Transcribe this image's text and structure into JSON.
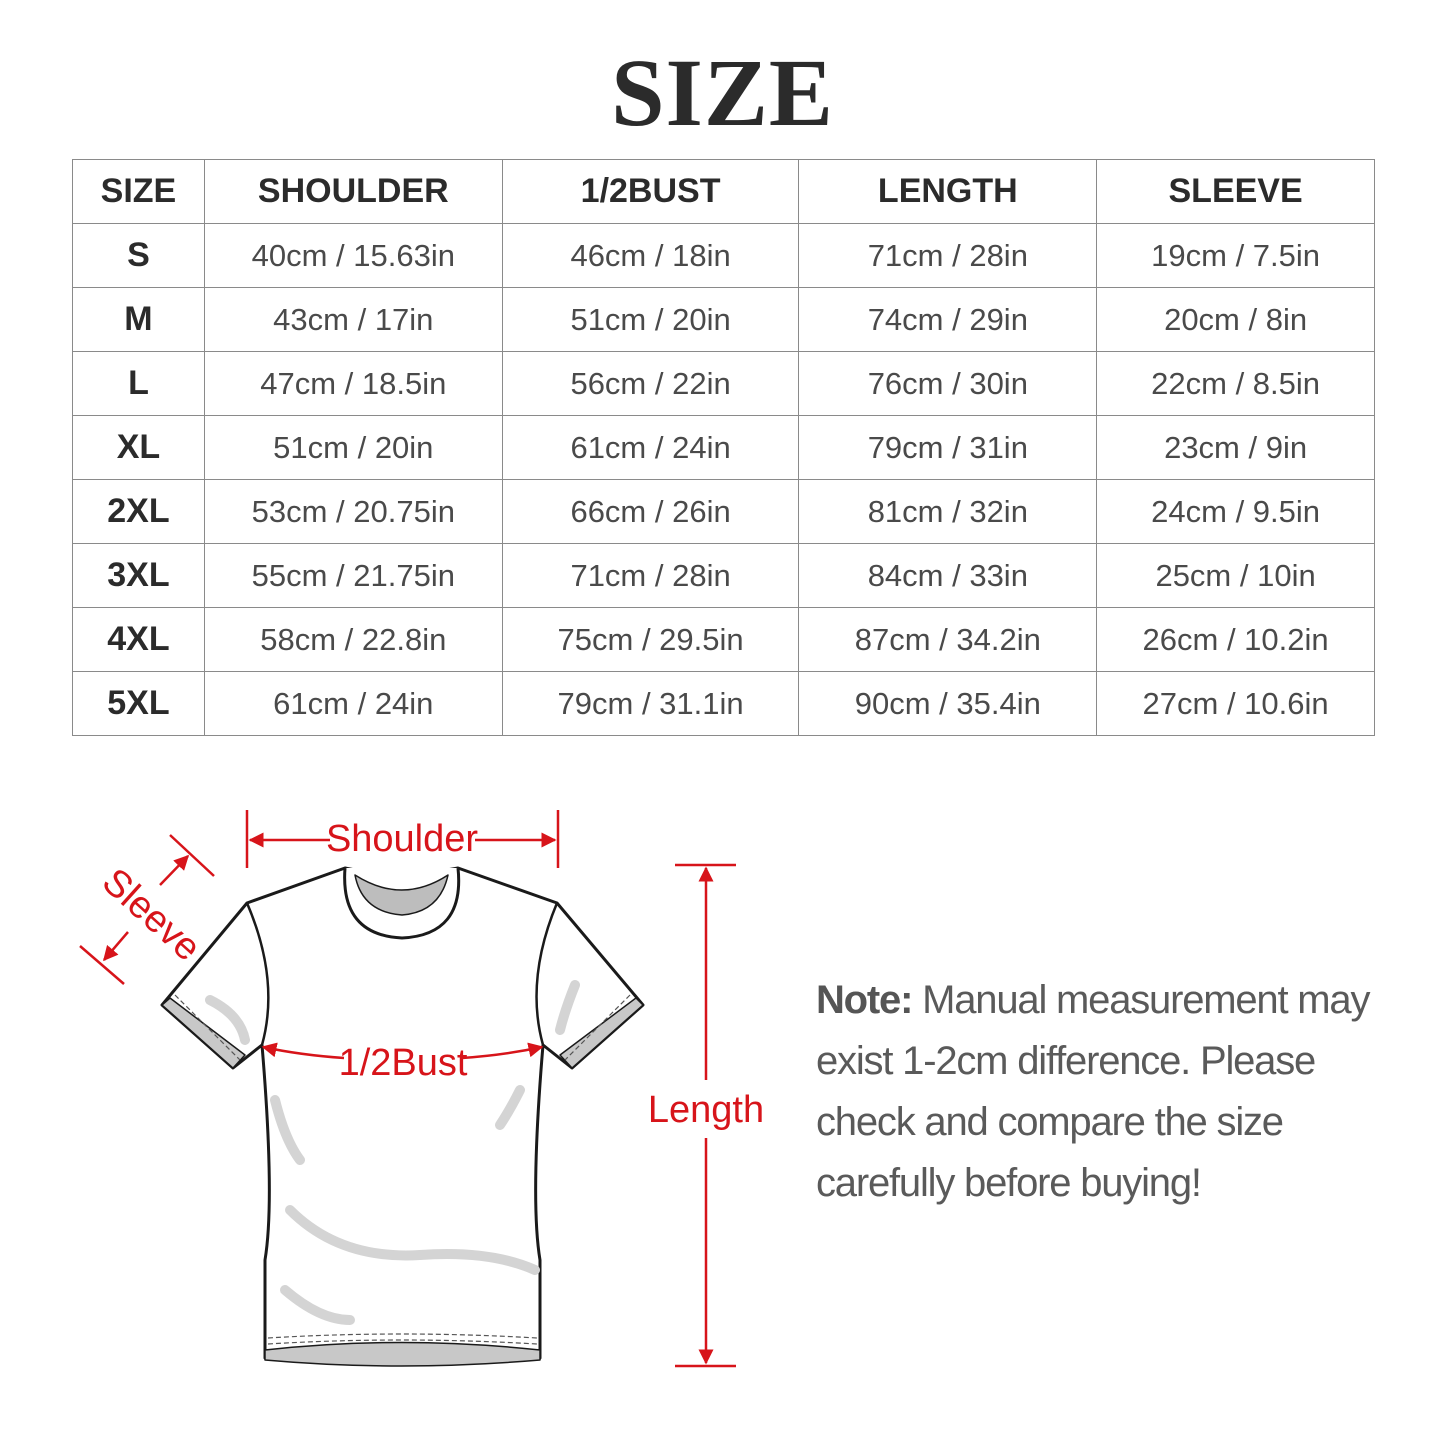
{
  "title": "SIZE",
  "table": {
    "headers": [
      "SIZE",
      "SHOULDER",
      "1/2BUST",
      "LENGTH",
      "SLEEVE"
    ],
    "rows": [
      [
        "S",
        "40cm / 15.63in",
        "46cm / 18in",
        "71cm / 28in",
        "19cm / 7.5in"
      ],
      [
        "M",
        "43cm / 17in",
        "51cm / 20in",
        "74cm / 29in",
        "20cm / 8in"
      ],
      [
        "L",
        "47cm / 18.5in",
        "56cm / 22in",
        "76cm / 30in",
        "22cm / 8.5in"
      ],
      [
        "XL",
        "51cm / 20in",
        "61cm / 24in",
        "79cm / 31in",
        "23cm / 9in"
      ],
      [
        "2XL",
        "53cm / 20.75in",
        "66cm / 26in",
        "81cm / 32in",
        "24cm / 9.5in"
      ],
      [
        "3XL",
        "55cm / 21.75in",
        "71cm / 28in",
        "84cm / 33in",
        "25cm / 10in"
      ],
      [
        "4XL",
        "58cm / 22.8in",
        "75cm / 29.5in",
        "87cm / 34.2in",
        "26cm / 10.2in"
      ],
      [
        "5XL",
        "61cm / 24in",
        "79cm / 31.1in",
        "90cm / 35.4in",
        "27cm / 10.6in"
      ]
    ]
  },
  "diagram": {
    "labels": {
      "shoulder": "Shoulder",
      "sleeve": "Sleeve",
      "bust": "1/2Bust",
      "length": "Length"
    },
    "accent_color": "#d7141a"
  },
  "note": {
    "label": "Note:",
    "text": "Manual measurement may exist 1-2cm difference. Please check and compare the size carefully before buying!"
  }
}
